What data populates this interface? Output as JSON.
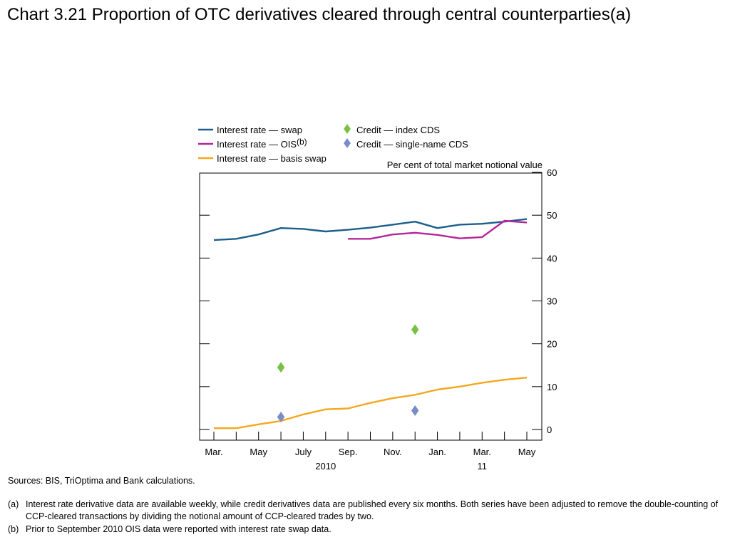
{
  "page": {
    "title": "Chart 3.21  Proportion of OTC derivatives cleared through central counterparties(a)",
    "sources": "Sources:  BIS, TriOptima and Bank calculations.",
    "footnotes": [
      {
        "mark": "(a)",
        "text": "Interest rate derivative data are available weekly, while credit derivatives data are published every six months.  Both series have been adjusted to remove the double-counting of CCP-cleared transactions by dividing the notional amount of CCP-cleared trades by two."
      },
      {
        "mark": "(b)",
        "text": "Prior to September 2010 OIS data were reported with interest rate swap data."
      }
    ]
  },
  "chart_data": {
    "type": "line",
    "title": "",
    "xlabel": "",
    "ylabel": "Per cent of total market notional value",
    "ylim": [
      0,
      60
    ],
    "yticks": [
      0,
      10,
      20,
      30,
      40,
      50,
      60
    ],
    "y_axis_side": "right",
    "x_months_range": [
      0,
      15
    ],
    "x_ticks": [
      {
        "label": "Mar.",
        "month": 0
      },
      {
        "label": "May",
        "month": 2
      },
      {
        "label": "July",
        "month": 4
      },
      {
        "label": "Sep.",
        "month": 6
      },
      {
        "label": "Nov.",
        "month": 8
      },
      {
        "label": "Jan.",
        "month": 10
      },
      {
        "label": "Mar.",
        "month": 12
      },
      {
        "label": "May",
        "month": 14
      }
    ],
    "x_year_labels": [
      {
        "label": "2010",
        "month": 5
      },
      {
        "label": "11",
        "month": 12
      }
    ],
    "legend_placement": "top",
    "series": [
      {
        "name": "Interest rate — swap",
        "name_sup": "",
        "color": "#1b5e8c",
        "style": "line",
        "points": [
          [
            0.0,
            44.2
          ],
          [
            1.0,
            44.5
          ],
          [
            2.0,
            45.5
          ],
          [
            3.0,
            47.0
          ],
          [
            4.0,
            46.8
          ],
          [
            5.0,
            46.2
          ],
          [
            6.0,
            46.6
          ],
          [
            7.0,
            47.1
          ],
          [
            8.0,
            47.8
          ],
          [
            9.0,
            48.5
          ],
          [
            10.0,
            47.0
          ],
          [
            11.0,
            47.8
          ],
          [
            12.0,
            48.0
          ],
          [
            13.0,
            48.5
          ],
          [
            14.0,
            49.1
          ]
        ]
      },
      {
        "name": "Interest rate — OIS",
        "name_sup": "(b)",
        "color": "#b5259a",
        "style": "line",
        "points": [
          [
            6.0,
            44.5
          ],
          [
            7.0,
            44.5
          ],
          [
            8.0,
            45.5
          ],
          [
            9.0,
            45.9
          ],
          [
            10.0,
            45.4
          ],
          [
            11.0,
            44.6
          ],
          [
            12.0,
            44.9
          ],
          [
            13.0,
            48.7
          ],
          [
            14.0,
            48.3
          ]
        ]
      },
      {
        "name": "Interest rate — basis swap",
        "name_sup": "",
        "color": "#f4a81d",
        "style": "line",
        "points": [
          [
            0.0,
            0.3
          ],
          [
            1.0,
            0.3
          ],
          [
            2.0,
            1.2
          ],
          [
            3.0,
            2.0
          ],
          [
            4.0,
            3.5
          ],
          [
            5.0,
            4.7
          ],
          [
            6.0,
            4.9
          ],
          [
            7.0,
            6.2
          ],
          [
            8.0,
            7.3
          ],
          [
            9.0,
            8.1
          ],
          [
            10.0,
            9.3
          ],
          [
            11.0,
            10.0
          ],
          [
            12.0,
            10.9
          ],
          [
            13.0,
            11.6
          ],
          [
            14.0,
            12.1
          ]
        ]
      },
      {
        "name": "Credit — index CDS",
        "name_sup": "",
        "color": "#7ac143",
        "style": "diamond",
        "points": [
          [
            3.0,
            14.5
          ],
          [
            9.0,
            23.3
          ]
        ]
      },
      {
        "name": "Credit — single-name CDS",
        "name_sup": "",
        "color": "#7a8cc6",
        "style": "diamond",
        "points": [
          [
            3.0,
            2.9
          ],
          [
            9.0,
            4.4
          ]
        ]
      }
    ]
  }
}
